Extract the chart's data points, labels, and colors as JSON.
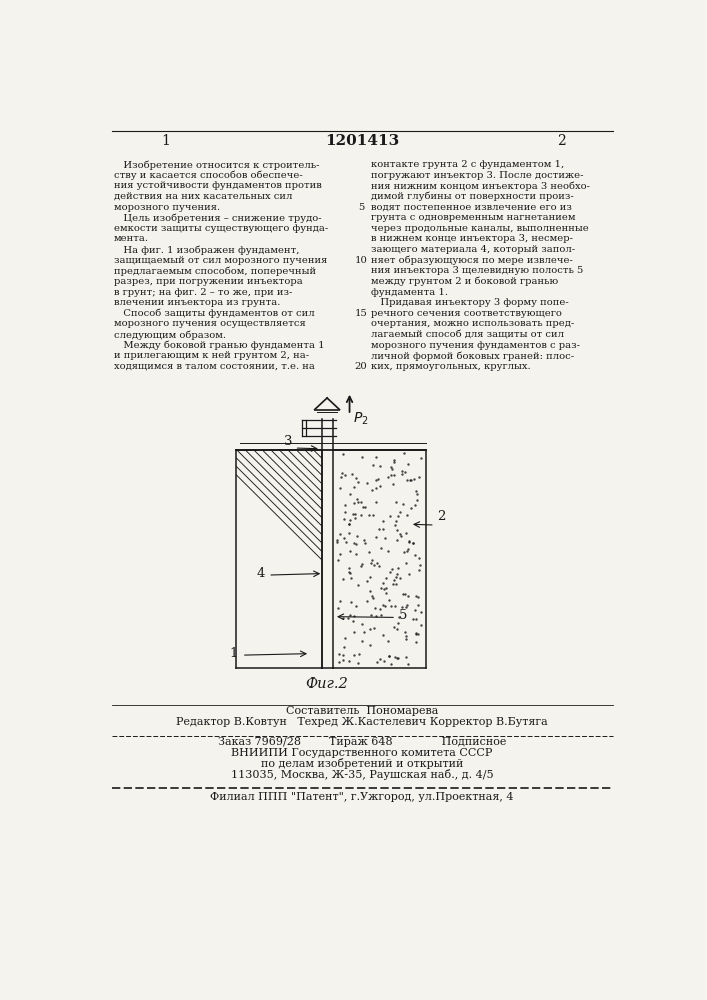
{
  "patent_number": "1201413",
  "page_left": "1",
  "page_right": "2",
  "bg_color": "#f5f3ee",
  "text_color": "#1a1a1a",
  "left_column_text": [
    "   Изобретение относится к строитель-",
    "ству и касается способов обеспече-",
    "ния устойчивости фундаментов против",
    "действия на них касательных сил",
    "морозного пучения.",
    "   Цель изобретения – снижение трудо-",
    "емкости защиты существующего фунда-",
    "мента.",
    "   На фиг. 1 изображен фундамент,",
    "защищаемый от сил морозного пучения",
    "предлагаемым способом, поперечный",
    "разрез, при погружении инъектора",
    "в грунт; на фиг. 2 – то же, при из-",
    "влечении инъектора из грунта.",
    "   Способ защиты фундаментов от сил",
    "морозного пучения осуществляется",
    "следующим образом.",
    "   Между боковой гранью фундамента 1",
    "и прилегающим к ней грунтом 2, на-",
    "ходящимся в талом состоянии, т.е. на"
  ],
  "right_column_text": [
    "контакте грунта 2 с фундаментом 1,",
    "погружают инъектор 3. После достиже-",
    "ния нижним концом инъектора 3 необхо-",
    "димой глубины от поверхности произ-",
    "водят постепенное извлечение его из",
    "грунта с одновременным нагнетанием",
    "через продольные каналы, выполненные",
    "в нижнем конце инъектора 3, несмер-",
    "зающего материала 4, который запол-",
    "няет образующуюся по мере извлече-",
    "ния инъектора 3 щелевидную полость 5",
    "между грунтом 2 и боковой гранью",
    "фундамента 1.",
    "   Придавая инъектору 3 форму попе-",
    "речного сечения соответствующего",
    "очертания, можно использовать пред-",
    "лагаемый способ для защиты от сил",
    "морозного пучения фундаментов с раз-",
    "личной формой боковых граней: плос-",
    "ких, прямоугольных, круглых."
  ],
  "line_numbers_right": [
    "5",
    "10",
    "15",
    "20"
  ],
  "fig_label": "Фиг.2",
  "bottom_text_line1": "Составитель  Пономарева",
  "bottom_text_line2": "Редактор В.Ковтун   Техред Ж.Кастелевич Корректор В.Бутяга",
  "bottom_text_line3": "Заказ 7969/28        Тираж 648              Подписное",
  "bottom_text_line4": "ВНИИПИ Государственного комитета СССР",
  "bottom_text_line5": "по делам изобретений и открытий",
  "bottom_text_line6": "113035, Москва, Ж-35, Раушская наб., д. 4/5",
  "bottom_text_line7": "Филиал ППП \"Патент\", г.Ужгород, ул.Проектная, 4"
}
